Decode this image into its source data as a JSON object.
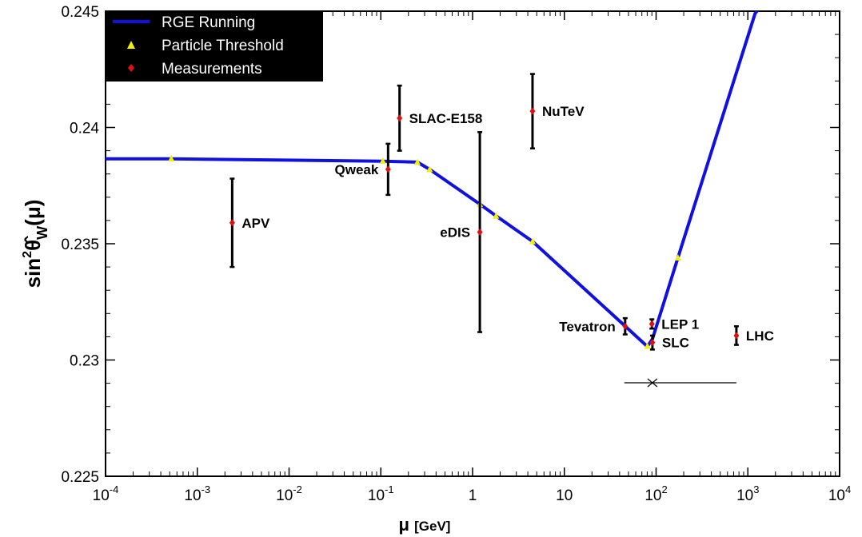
{
  "chart_data": {
    "type": "scatter",
    "xscale": "log",
    "xlim": [
      0.0001,
      10000
    ],
    "ylim": [
      0.225,
      0.245
    ],
    "xlabel": {
      "symbol": "μ",
      "unit": "[GeV]"
    },
    "ylabel": {
      "prefix": "sin",
      "sup": "2",
      "theta": "θ̂",
      "sub": "W",
      "suffix": "(μ)"
    },
    "x_ticks": [
      {
        "value": 0.0001,
        "base": "10",
        "exp": "-4"
      },
      {
        "value": 0.001,
        "base": "10",
        "exp": "-3"
      },
      {
        "value": 0.01,
        "base": "10",
        "exp": "-2"
      },
      {
        "value": 0.1,
        "base": "10",
        "exp": "-1"
      },
      {
        "value": 1,
        "base": "1",
        "exp": ""
      },
      {
        "value": 10,
        "base": "10",
        "exp": ""
      },
      {
        "value": 100,
        "base": "10",
        "exp": "2"
      },
      {
        "value": 1000,
        "base": "10",
        "exp": "3"
      },
      {
        "value": 10000,
        "base": "10",
        "exp": "4"
      }
    ],
    "y_ticks": [
      {
        "value": 0.225,
        "label": "0.225"
      },
      {
        "value": 0.23,
        "label": "0.23"
      },
      {
        "value": 0.235,
        "label": "0.235"
      },
      {
        "value": 0.24,
        "label": "0.24"
      },
      {
        "value": 0.245,
        "label": "0.245"
      }
    ],
    "legend": {
      "placement": "top-left",
      "entries": [
        {
          "label": "RGE Running",
          "marker": "line"
        },
        {
          "label": "Particle Threshold",
          "marker": "triangle"
        },
        {
          "label": "Measurements",
          "marker": "diamond"
        }
      ]
    },
    "series": [
      {
        "name": "RGE Running",
        "kind": "line",
        "color": "#1010e0",
        "points": [
          [
            0.0001,
            0.23865
          ],
          [
            0.00052,
            0.23865
          ],
          [
            0.105,
            0.23855
          ],
          [
            0.25,
            0.23851
          ],
          [
            0.34,
            0.2382
          ],
          [
            1.2,
            0.2367
          ],
          [
            1.8,
            0.2362
          ],
          [
            4.5,
            0.2351
          ],
          [
            80.4,
            0.23058
          ],
          [
            91.2,
            0.2309
          ],
          [
            173,
            0.2344
          ],
          [
            1200,
            0.2449
          ],
          [
            1440,
            0.2453
          ]
        ]
      },
      {
        "name": "Particle Threshold",
        "kind": "marker",
        "color": "#f0f000",
        "points": [
          [
            0.00052,
            0.23866
          ],
          [
            0.105,
            0.23856
          ],
          [
            0.25,
            0.23851
          ],
          [
            0.34,
            0.2382
          ],
          [
            1.2,
            0.2367
          ],
          [
            1.8,
            0.2362
          ],
          [
            4.5,
            0.2351
          ],
          [
            80.4,
            0.2306
          ],
          [
            173,
            0.2344
          ]
        ]
      },
      {
        "name": "Measurements",
        "kind": "errorbar",
        "color": "#e01010",
        "points": [
          {
            "label": "APV",
            "x": 0.0024,
            "y": 0.2359,
            "err": 0.0019,
            "label_side": "right"
          },
          {
            "label": "Qweak",
            "x": 0.12,
            "y": 0.2382,
            "err": 0.0011,
            "label_side": "left"
          },
          {
            "label": "SLAC-E158",
            "x": 0.16,
            "y": 0.2404,
            "err": 0.0014,
            "label_side": "right"
          },
          {
            "label": "eDIS",
            "x": 1.2,
            "y": 0.2355,
            "err": 0.0043,
            "label_side": "left"
          },
          {
            "label": "NuTeV",
            "x": 4.5,
            "y": 0.2407,
            "err": 0.0016,
            "label_side": "right"
          },
          {
            "label": "Tevatron",
            "x": 46,
            "y": 0.23145,
            "err": 0.00035,
            "label_side": "left"
          },
          {
            "label": "LEP 1",
            "x": 90,
            "y": 0.23155,
            "err": 0.0002,
            "label_side": "right"
          },
          {
            "label": "SLC",
            "x": 91.2,
            "y": 0.23075,
            "err": 0.0003,
            "label_side": "right"
          },
          {
            "label": "LHC",
            "x": 750,
            "y": 0.23105,
            "err": 0.0004,
            "label_side": "right"
          }
        ]
      }
    ],
    "annotation_line": {
      "y": 0.22902,
      "x_from": 45,
      "x_to": 750,
      "cross_x": 91.2
    }
  }
}
